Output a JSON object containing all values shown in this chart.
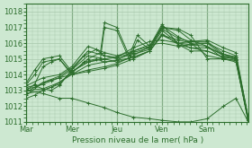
{
  "bg_color": "#cde8d1",
  "grid_color": "#a8c8ac",
  "line_color": "#2d6e2d",
  "xlabel_text": "Pression niveau de la mer( hPa )",
  "ylim": [
    1011,
    1018.5
  ],
  "yticks": [
    1011,
    1012,
    1013,
    1014,
    1015,
    1016,
    1017,
    1018
  ],
  "xlim": [
    0,
    108
  ],
  "xtick_positions": [
    0,
    22,
    44,
    66,
    88
  ],
  "xtick_labels": [
    "Mar",
    "Mer",
    "Jeu",
    "Ven",
    "Sam"
  ],
  "vlines": [
    0,
    22,
    44,
    66,
    88
  ],
  "lines": [
    [
      0,
      1013.1,
      4,
      1013.2,
      8,
      1013.4,
      12,
      1013.6,
      16,
      1013.8,
      22,
      1014.0,
      30,
      1014.3,
      38,
      1014.5,
      44,
      1014.7,
      52,
      1015.2,
      60,
      1015.8,
      66,
      1017.0,
      74,
      1016.9,
      80,
      1016.5,
      88,
      1015.0,
      96,
      1015.0,
      102,
      1014.8,
      108,
      1011.1
    ],
    [
      0,
      1012.5,
      4,
      1012.7,
      8,
      1013.0,
      12,
      1013.2,
      22,
      1014.0,
      30,
      1014.2,
      38,
      1014.4,
      44,
      1014.6,
      52,
      1015.0,
      60,
      1015.5,
      66,
      1016.5,
      74,
      1016.2,
      80,
      1016.0,
      88,
      1015.2,
      96,
      1015.0,
      102,
      1014.9,
      108,
      1011.2
    ],
    [
      0,
      1013.0,
      8,
      1013.1,
      16,
      1013.5,
      22,
      1014.1,
      30,
      1015.0,
      36,
      1015.4,
      38,
      1017.3,
      44,
      1017.0,
      50,
      1015.2,
      54,
      1016.5,
      60,
      1015.8,
      66,
      1017.2,
      74,
      1015.9,
      80,
      1015.5,
      88,
      1015.5,
      96,
      1015.1,
      102,
      1015.0,
      108,
      1011.1
    ],
    [
      0,
      1012.8,
      8,
      1013.0,
      16,
      1013.4,
      22,
      1014.2,
      30,
      1014.8,
      36,
      1015.0,
      38,
      1017.0,
      44,
      1016.8,
      50,
      1015.0,
      54,
      1016.2,
      60,
      1015.6,
      66,
      1016.8,
      74,
      1016.0,
      80,
      1015.7,
      88,
      1015.7,
      96,
      1015.3,
      102,
      1015.1,
      108,
      1011.2
    ],
    [
      0,
      1013.2,
      4,
      1013.3,
      8,
      1013.1,
      12,
      1013.0,
      16,
      1013.3,
      22,
      1014.3,
      28,
      1015.2,
      34,
      1015.6,
      38,
      1015.2,
      44,
      1015.0,
      52,
      1015.3,
      60,
      1015.6,
      66,
      1017.0,
      74,
      1016.8,
      80,
      1016.2,
      88,
      1015.8,
      96,
      1015.0,
      102,
      1014.9,
      108,
      1011.0
    ],
    [
      0,
      1013.0,
      4,
      1013.4,
      8,
      1014.5,
      12,
      1014.8,
      16,
      1015.0,
      22,
      1014.1,
      28,
      1014.8,
      34,
      1015.0,
      38,
      1014.8,
      44,
      1014.9,
      52,
      1015.1,
      60,
      1015.5,
      66,
      1016.5,
      74,
      1016.0,
      80,
      1015.9,
      88,
      1015.8,
      96,
      1015.2,
      102,
      1015.1,
      108,
      1011.2
    ],
    [
      0,
      1012.7,
      8,
      1013.5,
      16,
      1013.9,
      22,
      1014.4,
      30,
      1015.5,
      38,
      1015.2,
      44,
      1015.1,
      52,
      1015.4,
      60,
      1015.7,
      66,
      1017.1,
      74,
      1016.4,
      80,
      1016.0,
      88,
      1016.0,
      96,
      1015.2,
      102,
      1015.0,
      108,
      1011.1
    ],
    [
      0,
      1013.3,
      8,
      1013.8,
      16,
      1014.0,
      22,
      1014.5,
      30,
      1015.8,
      38,
      1015.4,
      44,
      1015.2,
      52,
      1015.5,
      60,
      1015.8,
      66,
      1016.9,
      74,
      1016.3,
      80,
      1016.1,
      88,
      1016.1,
      96,
      1015.3,
      102,
      1015.1,
      108,
      1011.1
    ],
    [
      0,
      1012.9,
      8,
      1013.5,
      16,
      1013.8,
      22,
      1014.3,
      30,
      1015.2,
      38,
      1015.0,
      44,
      1014.8,
      52,
      1015.1,
      60,
      1015.5,
      66,
      1016.6,
      74,
      1015.9,
      80,
      1015.7,
      88,
      1015.5,
      96,
      1015.1,
      102,
      1015.0,
      108,
      1011.2
    ],
    [
      0,
      1013.4,
      4,
      1014.0,
      8,
      1014.8,
      12,
      1014.9,
      16,
      1015.0,
      22,
      1014.0,
      30,
      1014.6,
      38,
      1014.8,
      44,
      1014.9,
      52,
      1015.5,
      60,
      1015.9,
      66,
      1016.0,
      74,
      1015.8,
      80,
      1015.9,
      88,
      1016.0,
      96,
      1015.5,
      102,
      1015.2,
      108,
      1011.3
    ],
    [
      0,
      1013.5,
      4,
      1014.3,
      8,
      1015.0,
      12,
      1015.1,
      16,
      1015.2,
      22,
      1014.2,
      30,
      1014.8,
      38,
      1015.0,
      44,
      1015.1,
      52,
      1015.7,
      60,
      1016.1,
      66,
      1016.2,
      74,
      1016.0,
      80,
      1016.1,
      88,
      1016.2,
      96,
      1015.7,
      102,
      1015.4,
      108,
      1011.2
    ],
    [
      0,
      1013.0,
      8,
      1012.8,
      16,
      1012.5,
      22,
      1012.5,
      30,
      1012.2,
      38,
      1011.9,
      44,
      1011.6,
      52,
      1011.3,
      60,
      1011.2,
      66,
      1011.1,
      74,
      1011.0,
      80,
      1011.0,
      88,
      1011.2,
      96,
      1012.0,
      102,
      1012.5,
      108,
      1011.0
    ]
  ],
  "marker": "+",
  "markersize": 3,
  "linewidth": 0.7
}
